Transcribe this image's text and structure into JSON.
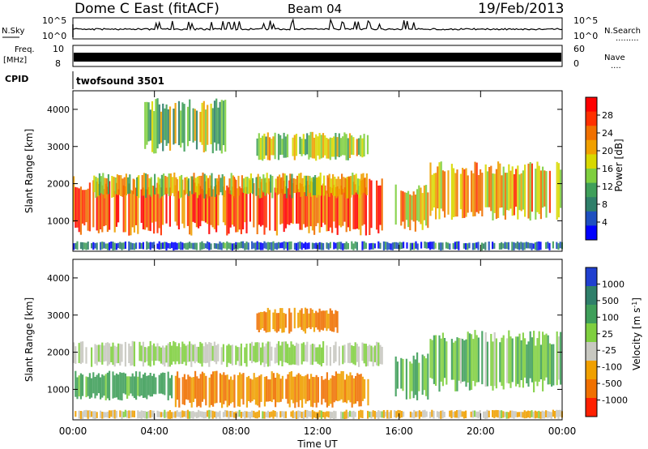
{
  "header": {
    "title": "Dome C East (fitACF)",
    "beam": "Beam 04",
    "date": "19/Feb/2013"
  },
  "strips": {
    "nsky_label": "N.Sky",
    "nsearch_label": "N.Search",
    "nsky_ticks": [
      "10^5",
      "10^0"
    ],
    "nsearch_ticks": [
      "10^5",
      "10^0"
    ],
    "freq_label_1": "Freq.",
    "freq_label_2": "[MHz]",
    "freq_ticks": [
      "10",
      "8"
    ],
    "nave_label": "Nave",
    "nave_ticks": [
      "60",
      "0"
    ],
    "cpid_label": "CPID",
    "cpid_value": "twofsound 3501"
  },
  "axes": {
    "ylabel": "Slant Range [km]",
    "xlabel": "Time UT",
    "y_ticks": [
      "4000",
      "3000",
      "2000",
      "1000"
    ],
    "x_ticks": [
      "00:00",
      "04:00",
      "08:00",
      "12:00",
      "16:00",
      "20:00",
      "00:00"
    ]
  },
  "colorbars": {
    "power": {
      "label": "Power [dB]",
      "ticks": [
        "28",
        "24",
        "20",
        "16",
        "12",
        "8",
        "4"
      ],
      "colors": [
        "#0000ff",
        "#1e4fc0",
        "#2f7f6a",
        "#3f9f5a",
        "#7fcf3f",
        "#d8d800",
        "#f0a000",
        "#f07000",
        "#ff3000",
        "#ff0000"
      ]
    },
    "velocity": {
      "label": "Velocity [m s",
      "label_sup": "-1",
      "label_end": "]",
      "ticks": [
        "1000",
        "500",
        "100",
        "25",
        "-25",
        "-100",
        "-500",
        "-1000"
      ],
      "colors": [
        "#2040d0",
        "#2f7f6a",
        "#3f9f5a",
        "#7fcf3f",
        "#c8c8c0",
        "#f0a000",
        "#f07000",
        "#ff2000"
      ]
    }
  },
  "chart_data": [
    {
      "type": "heatmap",
      "title": "Power",
      "xlabel": "Time UT",
      "ylabel": "Slant Range [km]",
      "x_range": [
        "00:00",
        "24:00"
      ],
      "ylim": [
        180,
        4500
      ],
      "colorbar_label": "Power [dB]",
      "colorbar_range": [
        0,
        32
      ],
      "regions": [
        {
          "t_start": 0.0,
          "t_end": 15.2,
          "range_low_km": 600,
          "range_high_km": 2200,
          "power_db": 26
        },
        {
          "t_start": 1.0,
          "t_end": 14.5,
          "range_low_km": 1600,
          "range_high_km": 2300,
          "power_db": 18
        },
        {
          "t_start": 3.5,
          "t_end": 7.5,
          "range_low_km": 2800,
          "range_high_km": 4300,
          "power_db": 14
        },
        {
          "t_start": 9.0,
          "t_end": 14.5,
          "range_low_km": 2600,
          "range_high_km": 3400,
          "power_db": 16
        },
        {
          "t_start": 15.8,
          "t_end": 17.5,
          "range_low_km": 700,
          "range_high_km": 2000,
          "power_db": 20
        },
        {
          "t_start": 17.5,
          "t_end": 24.0,
          "range_low_km": 1000,
          "range_high_km": 2600,
          "power_db": 20
        },
        {
          "t_start": 0.0,
          "t_end": 24.0,
          "range_low_km": 200,
          "range_high_km": 450,
          "power_db": 6
        }
      ]
    },
    {
      "type": "heatmap",
      "title": "Velocity",
      "xlabel": "Time UT",
      "ylabel": "Slant Range [km]",
      "x_range": [
        "00:00",
        "24:00"
      ],
      "ylim": [
        180,
        4500
      ],
      "colorbar_label": "Velocity [m s-1]",
      "colorbar_range": [
        -1000,
        1000
      ],
      "regions": [
        {
          "t_start": 0.0,
          "t_end": 15.2,
          "range_low_km": 1600,
          "range_high_km": 2300,
          "velocity_ms": 0
        },
        {
          "t_start": 0.0,
          "t_end": 5.0,
          "range_low_km": 700,
          "range_high_km": 1500,
          "velocity_ms": 150
        },
        {
          "t_start": 5.0,
          "t_end": 14.5,
          "range_low_km": 500,
          "range_high_km": 1500,
          "velocity_ms": -300
        },
        {
          "t_start": 9.0,
          "t_end": 13.0,
          "range_low_km": 2500,
          "range_high_km": 3200,
          "velocity_ms": -300
        },
        {
          "t_start": 15.8,
          "t_end": 17.5,
          "range_low_km": 700,
          "range_high_km": 2000,
          "velocity_ms": 150
        },
        {
          "t_start": 17.5,
          "t_end": 24.0,
          "range_low_km": 900,
          "range_high_km": 2600,
          "velocity_ms": 50
        },
        {
          "t_start": 0.0,
          "t_end": 24.0,
          "range_low_km": 200,
          "range_high_km": 450,
          "velocity_ms": -50
        }
      ]
    }
  ]
}
